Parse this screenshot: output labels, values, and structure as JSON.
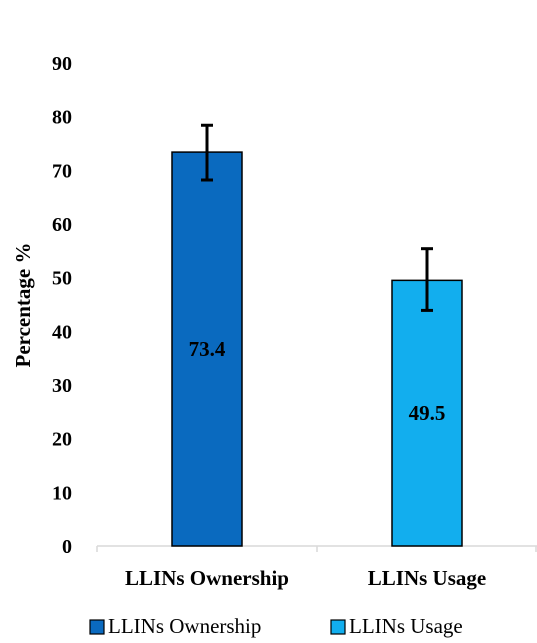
{
  "chart_data": {
    "type": "bar",
    "categories": [
      "LLINs Ownership",
      "LLINs Usage"
    ],
    "values": [
      73.4,
      49.5
    ],
    "error_bars": [
      {
        "low": 68.2,
        "high": 78.4
      },
      {
        "low": 43.9,
        "high": 55.4
      }
    ],
    "data_labels": [
      "73.4",
      "49.5"
    ],
    "colors": [
      "#0a6abf",
      "#12aeee"
    ],
    "series": [
      {
        "name": "LLINs Ownership",
        "color": "#0a6abf"
      },
      {
        "name": "LLINs Usage",
        "color": "#12aeee"
      }
    ],
    "ylabel": "Percentage %",
    "xlabel": "",
    "title": "",
    "ylim": [
      0,
      90
    ],
    "yticks": [
      "0",
      "10",
      "20",
      "30",
      "40",
      "50",
      "60",
      "70",
      "80",
      "90"
    ],
    "grid": false,
    "legend_position": "bottom"
  }
}
